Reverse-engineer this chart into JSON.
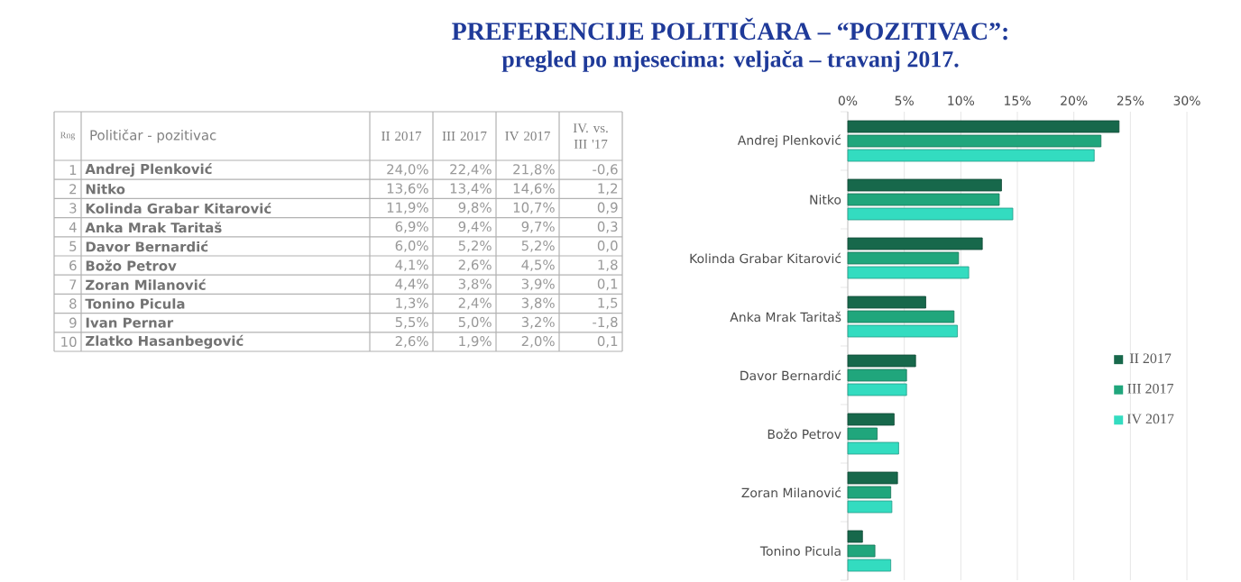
{
  "chart_data": {
    "type": "bar",
    "orientation": "horizontal",
    "title": "PREFERENCIJE POLITIČARA – “POZITIVAC”:",
    "subtitle": "pregled po mjesecima: veljača – travanj 2017.",
    "categories": [
      "Andrej Plenković",
      "Nitko",
      "Kolinda Grabar Kitarović",
      "Anka Mrak Taritaš",
      "Davor Bernardić",
      "Božo Petrov",
      "Zoran Milanović",
      "Tonino Picula"
    ],
    "series": [
      {
        "name": "II 2017",
        "color": "#17684b",
        "values": [
          24.0,
          13.6,
          11.9,
          6.9,
          6.0,
          4.1,
          4.4,
          1.3
        ]
      },
      {
        "name": "III 2017",
        "color": "#20a67c",
        "values": [
          22.4,
          13.4,
          9.8,
          9.4,
          5.2,
          2.6,
          3.8,
          2.4
        ]
      },
      {
        "name": "IV 2017",
        "color": "#33dcc0",
        "values": [
          21.8,
          14.6,
          10.7,
          9.7,
          5.2,
          4.5,
          3.9,
          3.8
        ]
      }
    ],
    "xlim": [
      0,
      30
    ],
    "xticks": [
      {
        "value": 0,
        "label": "0%"
      },
      {
        "value": 5,
        "label": "5%"
      },
      {
        "value": 10,
        "label": "10%"
      },
      {
        "value": 15,
        "label": "15%"
      },
      {
        "value": 20,
        "label": "20%"
      },
      {
        "value": 25,
        "label": "25%"
      },
      {
        "value": 30,
        "label": "30%"
      }
    ],
    "grid": "x",
    "legend": "right",
    "annotations": [
      "Rng",
      "Političar - pozitivac",
      "II 2017",
      "III 2017",
      "IV 2017",
      "IV. vs. III '17",
      "1",
      "Andrej Plenković",
      "24,0%",
      "22,4%",
      "21,8%",
      "-0,6",
      "2",
      "Nitko",
      "13,6%",
      "13,4%",
      "14,6%",
      "1,2",
      "3",
      "Kolinda Grabar Kitarović",
      "11,9%",
      "9,8%",
      "10,7%",
      "0,9",
      "4",
      "Anka Mrak Taritaš",
      "6,9%",
      "9,4%",
      "9,7%",
      "0,3",
      "5",
      "Davor Bernardić",
      "6,0%",
      "5,2%",
      "5,2%",
      "0,0",
      "6",
      "Božo Petrov",
      "4,1%",
      "2,6%",
      "4,5%",
      "1,8",
      "7",
      "Zoran Milanović",
      "4,4%",
      "3,8%",
      "3,9%",
      "0,1",
      "8",
      "Tonino Picula",
      "1,3%",
      "2,4%",
      "3,8%",
      "1,5",
      "9",
      "Ivan Pernar",
      "5,5%",
      "5,0%",
      "3,2%",
      "-1,8",
      "10",
      "Zlatko Hasanbegović",
      "2,6%",
      "1,9%",
      "2,0%",
      "0,1"
    ]
  }
}
